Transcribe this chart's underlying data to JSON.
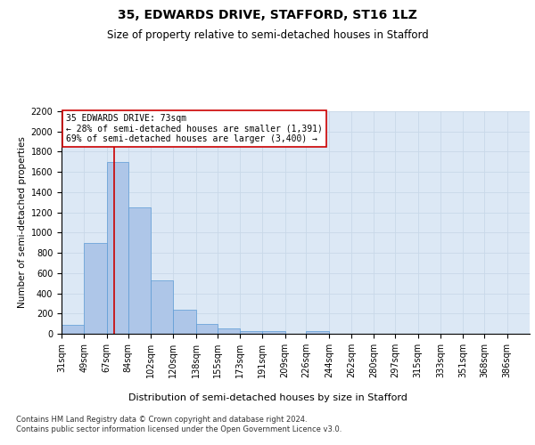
{
  "title_line1": "35, EDWARDS DRIVE, STAFFORD, ST16 1LZ",
  "title_line2": "Size of property relative to semi-detached houses in Stafford",
  "xlabel": "Distribution of semi-detached houses by size in Stafford",
  "ylabel": "Number of semi-detached properties",
  "footer": "Contains HM Land Registry data © Crown copyright and database right 2024.\nContains public sector information licensed under the Open Government Licence v3.0.",
  "annotation_title": "35 EDWARDS DRIVE: 73sqm",
  "annotation_line1": "← 28% of semi-detached houses are smaller (1,391)",
  "annotation_line2": "69% of semi-detached houses are larger (3,400) →",
  "property_size": 73,
  "bar_color": "#aec6e8",
  "bar_edge_color": "#5b9bd5",
  "highlight_line_color": "#cc0000",
  "categories": [
    "31sqm",
    "49sqm",
    "67sqm",
    "84sqm",
    "102sqm",
    "120sqm",
    "138sqm",
    "155sqm",
    "173sqm",
    "191sqm",
    "209sqm",
    "226sqm",
    "244sqm",
    "262sqm",
    "280sqm",
    "297sqm",
    "315sqm",
    "333sqm",
    "351sqm",
    "368sqm",
    "386sqm"
  ],
  "values": [
    90,
    900,
    1700,
    1250,
    530,
    240,
    100,
    50,
    30,
    25,
    0,
    25,
    0,
    0,
    0,
    0,
    0,
    0,
    0,
    0,
    0
  ],
  "ylim": [
    0,
    2200
  ],
  "yticks": [
    0,
    200,
    400,
    600,
    800,
    1000,
    1200,
    1400,
    1600,
    1800,
    2000,
    2200
  ],
  "bin_edges": [
    31,
    49,
    67,
    84,
    102,
    120,
    138,
    155,
    173,
    191,
    209,
    226,
    244,
    262,
    280,
    297,
    315,
    333,
    351,
    368,
    386,
    404
  ],
  "grid_color": "#c8d8e8",
  "bg_color": "#dce8f5",
  "title1_fontsize": 10,
  "title2_fontsize": 8.5,
  "annot_box_color": "#ffffff",
  "annot_box_edge": "#cc0000",
  "ylabel_fontsize": 7.5,
  "tick_fontsize": 7,
  "annot_fontsize": 7,
  "xlabel_fontsize": 8,
  "footer_fontsize": 6
}
